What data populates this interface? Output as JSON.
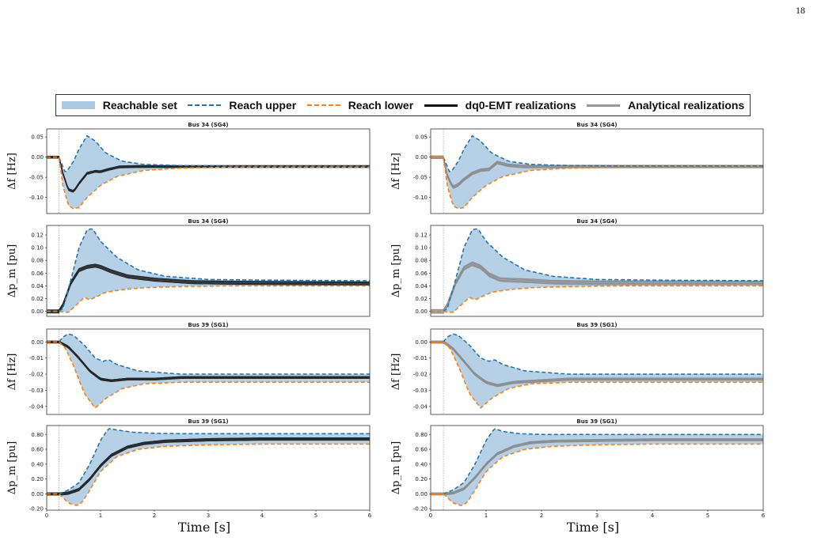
{
  "page_number": "18",
  "legend": [
    {
      "label": "Reachable set",
      "kind": "fill",
      "color": "#a9c9e2"
    },
    {
      "label": "Reach upper",
      "kind": "dash",
      "color": "#1f77b4"
    },
    {
      "label": "Reach lower",
      "kind": "dash",
      "color": "#ff7f0e"
    },
    {
      "label": "dq0-EMT realizations",
      "kind": "line",
      "color": "#111111"
    },
    {
      "label": "Analytical realizations",
      "kind": "line",
      "color": "#999999"
    }
  ],
  "colors": {
    "fill": "#a9c9e2",
    "upper": "#1f77b4",
    "lower": "#ff7f0e",
    "emt": "#222222",
    "analytical": "#8c8c8c",
    "event_line": "#999999"
  },
  "chart_data": [
    {
      "type": "line",
      "title": "Bus 34 (SG4)",
      "ylabel": "Δf [Hz]",
      "xlim": [
        0,
        6
      ],
      "ylim": [
        -0.14,
        0.07
      ],
      "yticks": [
        "0.05",
        "0.00",
        "-0.05",
        "-0.10"
      ],
      "ytick_values": [
        0.05,
        0,
        -0.05,
        -0.1
      ],
      "xticks": [],
      "event_time": 0.23,
      "realization": "emt",
      "upper": {
        "x": [
          0,
          0.23,
          0.35,
          0.5,
          0.6,
          0.75,
          0.9,
          1.1,
          1.4,
          1.8,
          2.5,
          3.5,
          6
        ],
        "y": [
          0,
          0,
          -0.04,
          -0.01,
          0.02,
          0.053,
          0.04,
          0.01,
          -0.01,
          -0.018,
          -0.021,
          -0.022,
          -0.022
        ]
      },
      "lower": {
        "x": [
          0,
          0.23,
          0.3,
          0.4,
          0.5,
          0.6,
          0.75,
          1,
          1.3,
          1.8,
          2.5,
          3.5,
          6
        ],
        "y": [
          0,
          0,
          -0.07,
          -0.12,
          -0.128,
          -0.125,
          -0.1,
          -0.07,
          -0.048,
          -0.033,
          -0.027,
          -0.025,
          -0.025
        ]
      },
      "center": {
        "x": [
          0,
          0.23,
          0.3,
          0.4,
          0.5,
          0.6,
          0.75,
          0.9,
          1,
          1.15,
          1.35,
          1.7,
          2.2,
          3,
          6
        ],
        "y": [
          0,
          0,
          -0.04,
          -0.08,
          -0.085,
          -0.065,
          -0.04,
          -0.035,
          -0.036,
          -0.03,
          -0.024,
          -0.023,
          -0.023,
          -0.023,
          -0.023
        ]
      },
      "band": 0.006
    },
    {
      "type": "line",
      "title": "Bus 34 (SG4)",
      "ylabel": "Δf [Hz]",
      "xlim": [
        0,
        6
      ],
      "ylim": [
        -0.14,
        0.07
      ],
      "yticks": [
        "0.05",
        "0.00",
        "-0.05",
        "-0.10"
      ],
      "ytick_values": [
        0.05,
        0,
        -0.05,
        -0.1
      ],
      "xticks": [],
      "event_time": 0.23,
      "realization": "analytical",
      "upper": {
        "x": [
          0,
          0.23,
          0.35,
          0.5,
          0.6,
          0.75,
          0.9,
          1.1,
          1.4,
          1.8,
          2.5,
          3.5,
          6
        ],
        "y": [
          0,
          0,
          -0.04,
          -0.01,
          0.02,
          0.053,
          0.04,
          0.01,
          -0.01,
          -0.018,
          -0.021,
          -0.022,
          -0.022
        ]
      },
      "lower": {
        "x": [
          0,
          0.23,
          0.3,
          0.4,
          0.5,
          0.6,
          0.75,
          1,
          1.3,
          1.8,
          2.5,
          3.5,
          6
        ],
        "y": [
          0,
          0,
          -0.07,
          -0.12,
          -0.128,
          -0.125,
          -0.1,
          -0.07,
          -0.048,
          -0.033,
          -0.027,
          -0.025,
          -0.025
        ]
      },
      "center": {
        "x": [
          0,
          0.23,
          0.3,
          0.4,
          0.5,
          0.6,
          0.75,
          0.9,
          1.05,
          1.2,
          1.4,
          1.7,
          2.2,
          3,
          6
        ],
        "y": [
          0,
          0,
          -0.045,
          -0.075,
          -0.068,
          -0.055,
          -0.04,
          -0.032,
          -0.03,
          -0.013,
          -0.02,
          -0.023,
          -0.023,
          -0.023,
          -0.023
        ]
      },
      "band": 0.008
    },
    {
      "type": "line",
      "title": "Bus 34 (SG4)",
      "ylabel": "Δp_m [pu]",
      "xlim": [
        0,
        6
      ],
      "ylim": [
        -0.008,
        0.135
      ],
      "yticks": [
        "0.12",
        "0.10",
        "0.08",
        "0.06",
        "0.04",
        "0.02",
        "0.00"
      ],
      "ytick_values": [
        0.12,
        0.1,
        0.08,
        0.06,
        0.04,
        0.02,
        0
      ],
      "xticks": [],
      "event_time": 0.23,
      "realization": "emt",
      "upper": {
        "x": [
          0,
          0.23,
          0.3,
          0.45,
          0.6,
          0.75,
          0.85,
          1,
          1.3,
          1.7,
          2.2,
          3,
          4,
          6
        ],
        "y": [
          0,
          0,
          0.004,
          0.05,
          0.1,
          0.128,
          0.13,
          0.11,
          0.085,
          0.065,
          0.055,
          0.05,
          0.049,
          0.048
        ]
      },
      "lower": {
        "x": [
          0,
          0.23,
          0.4,
          0.55,
          0.7,
          0.8,
          0.9,
          1.1,
          1.4,
          1.8,
          2.5,
          3.5,
          6
        ],
        "y": [
          0,
          0,
          -0.002,
          0.01,
          0.022,
          0.018,
          0.022,
          0.03,
          0.034,
          0.037,
          0.039,
          0.04,
          0.04
        ]
      },
      "center": {
        "x": [
          0,
          0.23,
          0.3,
          0.45,
          0.6,
          0.75,
          0.9,
          1,
          1.2,
          1.5,
          2,
          2.7,
          3.5,
          6
        ],
        "y": [
          0,
          0,
          0.01,
          0.045,
          0.065,
          0.07,
          0.072,
          0.07,
          0.063,
          0.055,
          0.05,
          0.046,
          0.045,
          0.044
        ]
      },
      "band": 0.006
    },
    {
      "type": "line",
      "title": "Bus 34 (SG4)",
      "ylabel": "Δp_m [pu]",
      "xlim": [
        0,
        6
      ],
      "ylim": [
        -0.008,
        0.135
      ],
      "yticks": [
        "0.12",
        "0.10",
        "0.08",
        "0.06",
        "0.04",
        "0.02",
        "0.00"
      ],
      "ytick_values": [
        0.12,
        0.1,
        0.08,
        0.06,
        0.04,
        0.02,
        0
      ],
      "xticks": [],
      "event_time": 0.23,
      "realization": "analytical",
      "upper": {
        "x": [
          0,
          0.23,
          0.3,
          0.45,
          0.6,
          0.75,
          0.85,
          1,
          1.3,
          1.7,
          2.2,
          3,
          4,
          6
        ],
        "y": [
          0,
          0,
          0.004,
          0.05,
          0.1,
          0.128,
          0.13,
          0.11,
          0.085,
          0.065,
          0.055,
          0.05,
          0.049,
          0.048
        ]
      },
      "lower": {
        "x": [
          0,
          0.23,
          0.4,
          0.55,
          0.7,
          0.8,
          0.9,
          1.1,
          1.4,
          1.8,
          2.5,
          3.5,
          6
        ],
        "y": [
          0,
          0,
          -0.002,
          0.01,
          0.022,
          0.018,
          0.022,
          0.03,
          0.034,
          0.037,
          0.039,
          0.04,
          0.04
        ]
      },
      "center": {
        "x": [
          0,
          0.23,
          0.3,
          0.45,
          0.6,
          0.75,
          0.9,
          1.05,
          1.25,
          1.5,
          1.8,
          2.2,
          3,
          6
        ],
        "y": [
          0,
          0,
          0.01,
          0.045,
          0.068,
          0.075,
          0.07,
          0.058,
          0.05,
          0.049,
          0.048,
          0.046,
          0.045,
          0.045
        ]
      },
      "band": 0.007
    },
    {
      "type": "line",
      "title": "Bus 39 (SG1)",
      "ylabel": "Δf [Hz]",
      "xlim": [
        0,
        6
      ],
      "ylim": [
        -0.045,
        0.008
      ],
      "yticks": [
        "0.00",
        "-0.01",
        "-0.02",
        "-0.03",
        "-0.04"
      ],
      "ytick_values": [
        0,
        -0.01,
        -0.02,
        -0.03,
        -0.04
      ],
      "xticks": [],
      "event_time": 0.23,
      "realization": "emt",
      "upper": {
        "x": [
          0,
          0.23,
          0.3,
          0.4,
          0.5,
          0.7,
          0.9,
          1.05,
          1.15,
          1.3,
          1.7,
          2.5,
          3.5,
          6
        ],
        "y": [
          0,
          0,
          0.003,
          0.005,
          0.004,
          -0.002,
          -0.01,
          -0.012,
          -0.011,
          -0.014,
          -0.018,
          -0.02,
          -0.02,
          -0.02
        ]
      },
      "lower": {
        "x": [
          0,
          0.23,
          0.35,
          0.5,
          0.7,
          0.9,
          1.1,
          1.4,
          1.8,
          2.5,
          3.5,
          6
        ],
        "y": [
          0,
          0,
          -0.004,
          -0.015,
          -0.032,
          -0.041,
          -0.035,
          -0.029,
          -0.026,
          -0.025,
          -0.025,
          -0.025
        ]
      },
      "center": {
        "x": [
          0,
          0.23,
          0.4,
          0.6,
          0.8,
          1,
          1.2,
          1.5,
          2,
          2.5,
          3.5,
          6
        ],
        "y": [
          0,
          0,
          -0.003,
          -0.01,
          -0.018,
          -0.023,
          -0.024,
          -0.023,
          -0.023,
          -0.022,
          -0.022,
          -0.022
        ]
      },
      "band": 0.0015
    },
    {
      "type": "line",
      "title": "Bus 39 (SG1)",
      "ylabel": "Δf [Hz]",
      "xlim": [
        0,
        6
      ],
      "ylim": [
        -0.045,
        0.008
      ],
      "yticks": [
        "0.00",
        "-0.01",
        "-0.02",
        "-0.03",
        "-0.04"
      ],
      "ytick_values": [
        0,
        -0.01,
        -0.02,
        -0.03,
        -0.04
      ],
      "xticks": [],
      "event_time": 0.23,
      "realization": "analytical",
      "upper": {
        "x": [
          0,
          0.23,
          0.3,
          0.4,
          0.5,
          0.7,
          0.9,
          1.05,
          1.15,
          1.3,
          1.7,
          2.5,
          3.5,
          6
        ],
        "y": [
          0,
          0,
          0.003,
          0.005,
          0.004,
          -0.002,
          -0.01,
          -0.012,
          -0.011,
          -0.014,
          -0.018,
          -0.02,
          -0.02,
          -0.02
        ]
      },
      "lower": {
        "x": [
          0,
          0.23,
          0.35,
          0.5,
          0.7,
          0.9,
          1.1,
          1.4,
          1.8,
          2.5,
          3.5,
          6
        ],
        "y": [
          0,
          0,
          -0.004,
          -0.015,
          -0.032,
          -0.041,
          -0.035,
          -0.029,
          -0.026,
          -0.025,
          -0.025,
          -0.025
        ]
      },
      "center": {
        "x": [
          0,
          0.23,
          0.4,
          0.6,
          0.8,
          1,
          1.2,
          1.5,
          2,
          2.5,
          3.5,
          6
        ],
        "y": [
          0,
          0,
          -0.004,
          -0.012,
          -0.02,
          -0.025,
          -0.027,
          -0.025,
          -0.024,
          -0.023,
          -0.023,
          -0.023
        ]
      },
      "band": 0.0017
    },
    {
      "type": "line",
      "title": "Bus 39 (SG1)",
      "ylabel": "Δp_m [pu]",
      "xlim": [
        0,
        6
      ],
      "ylim": [
        -0.22,
        0.92
      ],
      "yticks": [
        "0.80",
        "0.60",
        "0.40",
        "0.20",
        "0.00",
        "-0.20"
      ],
      "ytick_values": [
        0.8,
        0.6,
        0.4,
        0.2,
        0,
        -0.2
      ],
      "xticks": [
        "0",
        "1",
        "2",
        "3",
        "4",
        "5",
        "6"
      ],
      "xtick_values": [
        0,
        1,
        2,
        3,
        4,
        5,
        6
      ],
      "xlabel": "Time [s]",
      "event_time": 0.23,
      "realization": "emt",
      "upper": {
        "x": [
          0,
          0.23,
          0.4,
          0.6,
          0.8,
          1,
          1.15,
          1.3,
          1.6,
          2,
          2.5,
          3,
          4,
          6
        ],
        "y": [
          0,
          0,
          0.05,
          0.15,
          0.4,
          0.72,
          0.88,
          0.86,
          0.83,
          0.815,
          0.81,
          0.81,
          0.81,
          0.81
        ]
      },
      "lower": {
        "x": [
          0,
          0.23,
          0.4,
          0.55,
          0.65,
          0.8,
          1,
          1.3,
          1.7,
          2.2,
          3,
          4,
          6
        ],
        "y": [
          0,
          0,
          -0.12,
          -0.16,
          -0.12,
          0.05,
          0.3,
          0.5,
          0.6,
          0.64,
          0.66,
          0.67,
          0.67
        ]
      },
      "center": {
        "x": [
          0,
          0.23,
          0.4,
          0.6,
          0.8,
          1,
          1.2,
          1.5,
          1.8,
          2.2,
          3,
          4,
          6
        ],
        "y": [
          0,
          0,
          0.01,
          0.06,
          0.2,
          0.38,
          0.52,
          0.63,
          0.68,
          0.71,
          0.73,
          0.74,
          0.74
        ]
      },
      "band": 0.04
    },
    {
      "type": "line",
      "title": "Bus 39 (SG1)",
      "ylabel": "Δp_m [pu]",
      "xlim": [
        0,
        6
      ],
      "ylim": [
        -0.22,
        0.92
      ],
      "yticks": [
        "0.80",
        "0.60",
        "0.40",
        "0.20",
        "0.00",
        "-0.20"
      ],
      "ytick_values": [
        0.8,
        0.6,
        0.4,
        0.2,
        0,
        -0.2
      ],
      "xticks": [
        "0",
        "1",
        "2",
        "3",
        "4",
        "5",
        "6"
      ],
      "xtick_values": [
        0,
        1,
        2,
        3,
        4,
        5,
        6
      ],
      "xlabel": "Time [s]",
      "event_time": 0.23,
      "realization": "analytical",
      "upper": {
        "x": [
          0,
          0.23,
          0.4,
          0.6,
          0.8,
          1,
          1.15,
          1.3,
          1.6,
          2,
          2.5,
          3,
          4,
          6
        ],
        "y": [
          0,
          0,
          0.05,
          0.15,
          0.4,
          0.72,
          0.88,
          0.84,
          0.81,
          0.8,
          0.8,
          0.8,
          0.8,
          0.8
        ]
      },
      "lower": {
        "x": [
          0,
          0.23,
          0.4,
          0.55,
          0.65,
          0.8,
          1,
          1.3,
          1.7,
          2.2,
          3,
          4,
          6
        ],
        "y": [
          0,
          0,
          -0.12,
          -0.16,
          -0.12,
          0.05,
          0.3,
          0.5,
          0.6,
          0.64,
          0.66,
          0.67,
          0.67
        ]
      },
      "center": {
        "x": [
          0,
          0.23,
          0.4,
          0.6,
          0.8,
          1,
          1.2,
          1.5,
          1.8,
          2.2,
          3,
          4,
          6
        ],
        "y": [
          0,
          0,
          0.01,
          0.07,
          0.22,
          0.4,
          0.54,
          0.64,
          0.69,
          0.71,
          0.72,
          0.73,
          0.73
        ]
      },
      "band": 0.035
    }
  ]
}
